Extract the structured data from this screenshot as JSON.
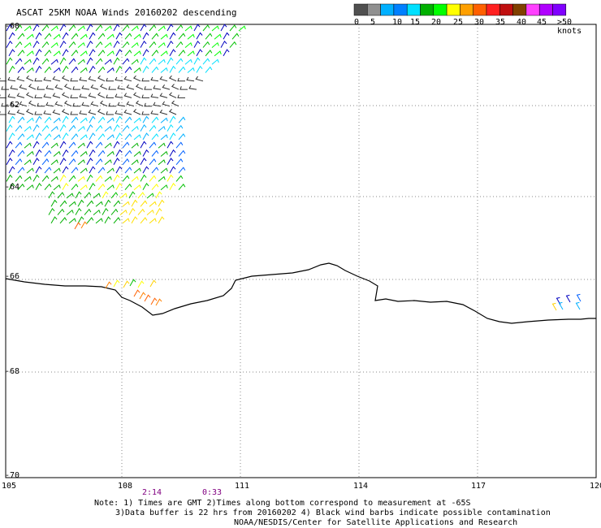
{
  "title": "ASCAT 25KM NOAA Winds 20160202 descending",
  "scale": {
    "colors": [
      "#505050",
      "#909090",
      "#00b0ff",
      "#0080ff",
      "#00e0ff",
      "#00b000",
      "#00ff00",
      "#ffff00",
      "#ffa000",
      "#ff6000",
      "#ff2020",
      "#c01010",
      "#804000",
      "#ff40ff",
      "#b000ff",
      "#8000ff"
    ],
    "labels": [
      "0",
      "5",
      "10",
      "15",
      "20",
      "25",
      "30",
      "35",
      "40",
      "45",
      ">50 knots"
    ]
  },
  "lat_labels": [
    "-60",
    "-62",
    "-64",
    "-66",
    "-68",
    "-70"
  ],
  "lon_labels": [
    "105",
    "108",
    "111",
    "114",
    "117",
    "120"
  ],
  "times": [
    "2:14",
    "0:33"
  ],
  "notes": {
    "line1": "Note: 1) Times are GMT 2)Times along bottom correspond to measurement at -65S",
    "line2": "3)Data buffer is 22 hrs from 20160202 4) Black wind barbs indicate possible contamination",
    "line3": "NOAA/NESDIS/Center for Satellite Applications and Research"
  }
}
